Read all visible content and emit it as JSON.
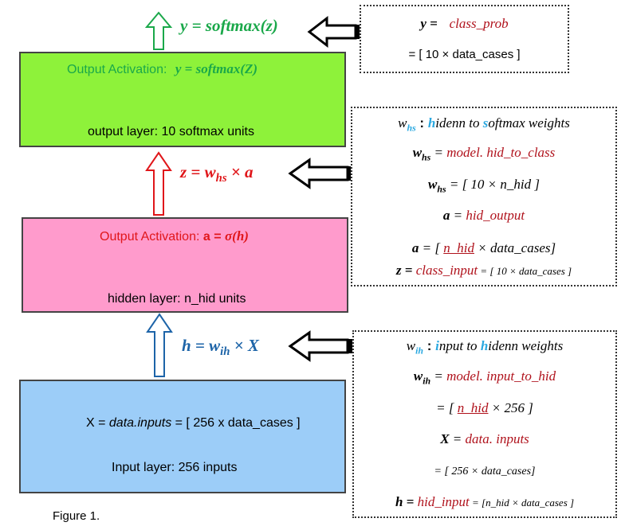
{
  "output_layer": {
    "activation_prefix": "Output Activation:",
    "activation_formula": "y =  softmax(Z)",
    "label": "output layer: 10 softmax units",
    "color": "#8ef23a"
  },
  "hidden_layer": {
    "activation_prefix": "Output Activation: ",
    "activation_a": "a = ",
    "activation_sigma": "σ(h)",
    "label": "hidden layer: n_hid units",
    "color": "#ff9bcc"
  },
  "input_layer": {
    "formula_prefix": "X = ",
    "formula_italic": "data.inputs",
    "formula_suffix": " = [ 256 x data_cases ]",
    "label": "Input layer: 256 inputs",
    "color": "#9ccdf8"
  },
  "arrows": {
    "top": "y = softmax(z)",
    "middle_z": "z = ",
    "middle_w": "w",
    "middle_sub": "hs",
    "middle_rest": " × a",
    "bottom_h": "h = ",
    "bottom_w": "w",
    "bottom_sub": "ih",
    "bottom_rest": " × X"
  },
  "box_top": {
    "y_lhs": "y =",
    "y_rhs": "class_prob",
    "dims": "= [ 10 × data_cases ]"
  },
  "box_middle": {
    "w": "w",
    "w_sub": "hs",
    "colon": " : ",
    "h_letter": "h",
    "idenn_to": "idenn to ",
    "s_letter": "s",
    "oftmax_weights": "oftmax weights",
    "whs_lhs": " = ",
    "whs_rhs": "model. hid_to_class",
    "whs_dims": " = [ 10  ×  n_hid  ]",
    "a_lhs": "a",
    "a_rhs": "hid_output",
    "a_dims_open": " = [ ",
    "a_dims_nhid": "n_hid",
    "a_dims_rest": "  ×   data_cases]",
    "z_lhs": "z = ",
    "z_rhs": "class_input",
    "z_dims": " = [ 10  × data_cases ]"
  },
  "box_bottom": {
    "w": "w",
    "w_sub": "ih",
    "colon": " : ",
    "i_letter": "i",
    "nput_to": "nput to ",
    "h_letter": "h",
    "idenn_weights": "idenn weights",
    "wih_rhs": "model. input_to_hid",
    "wih_dims_open": "= [ ",
    "wih_dims_nhid": "n_hid",
    "wih_dims_rest": " × 256 ]",
    "x_lhs": "X",
    "x_rhs": "data. inputs",
    "x_dims": "= [ 256  × data_cases]",
    "h_lhs": "h = ",
    "h_rhs": "hid_input",
    "h_dims": " = [n_hid × data_cases ]"
  },
  "caption": "Figure 1."
}
